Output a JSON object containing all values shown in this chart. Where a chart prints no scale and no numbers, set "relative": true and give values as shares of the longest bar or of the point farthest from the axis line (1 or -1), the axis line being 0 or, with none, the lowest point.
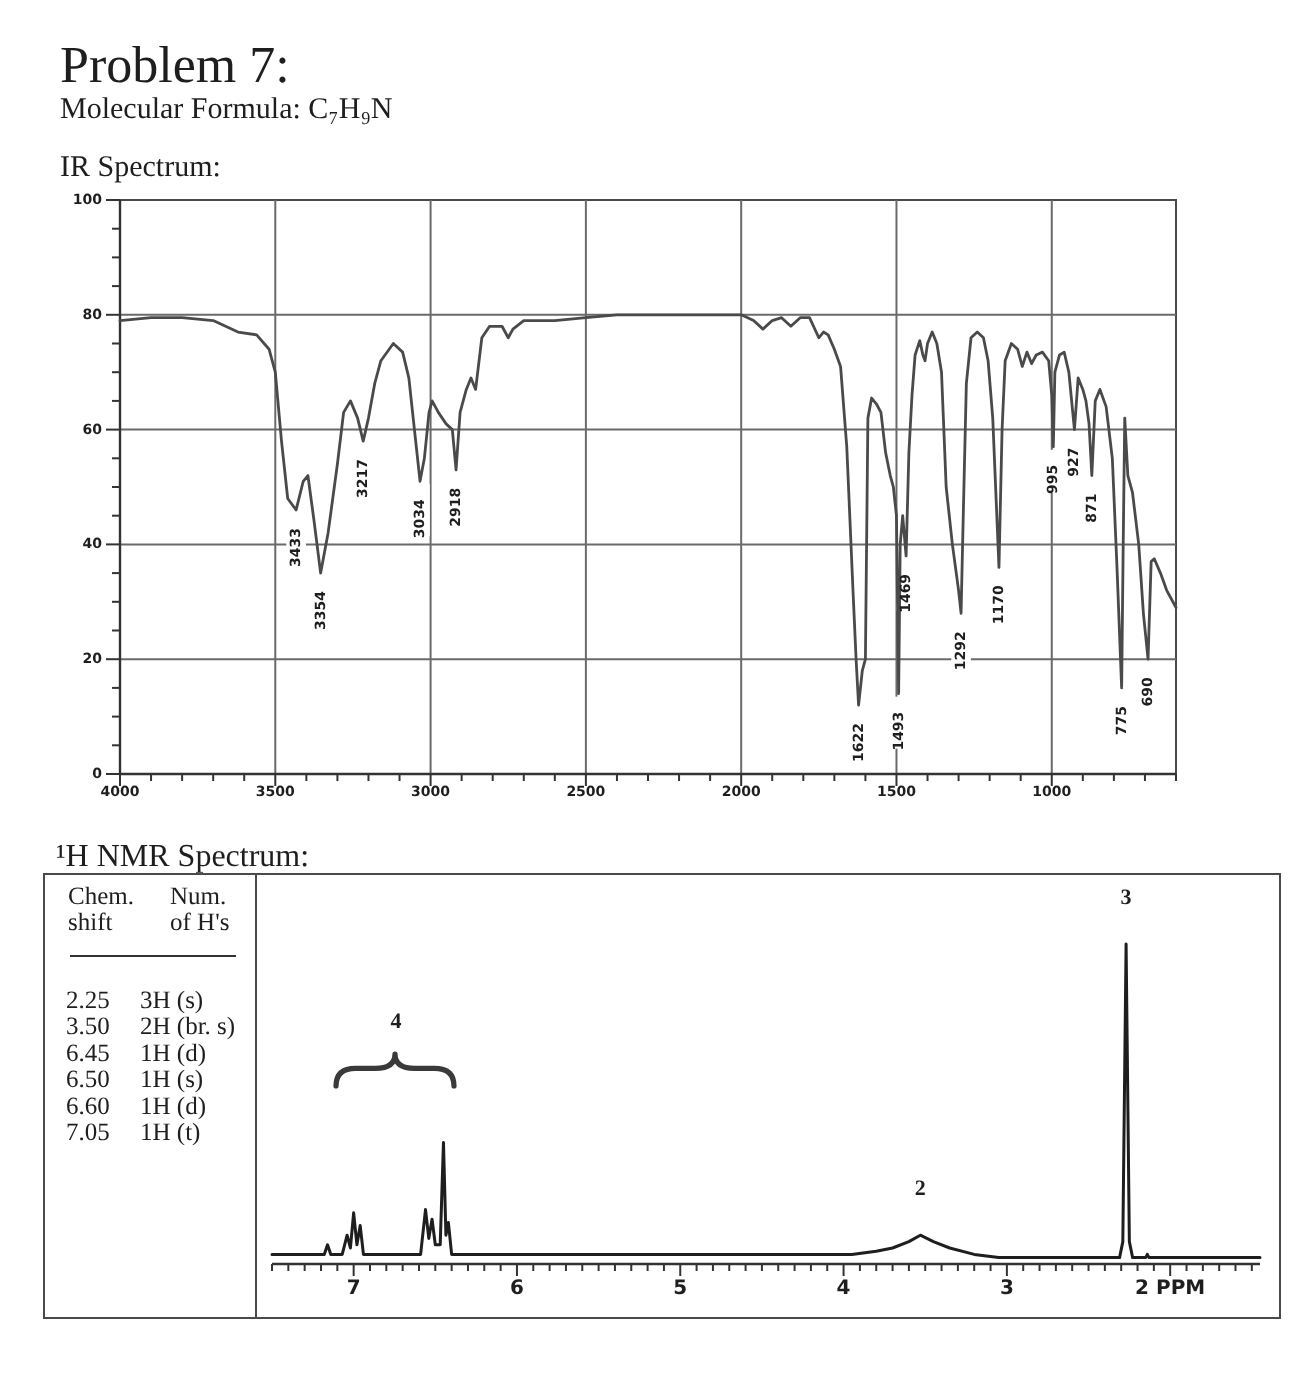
{
  "chart_data": [
    {
      "type": "other",
      "title": "Problem 7:",
      "subtitle": "Molecular Formula: C₇H₉N"
    },
    {
      "type": "line",
      "title": "IR Spectrum:",
      "color": "#4a4a4a",
      "x": [
        4000,
        3900,
        3800,
        3700,
        3660,
        3620,
        3560,
        3520,
        3500,
        3480,
        3460,
        3433,
        3410,
        3395,
        3375,
        3354,
        3330,
        3300,
        3280,
        3258,
        3235,
        3217,
        3200,
        3180,
        3160,
        3120,
        3090,
        3070,
        3050,
        3034,
        3020,
        3005,
        2995,
        2975,
        2950,
        2930,
        2918,
        2905,
        2885,
        2870,
        2855,
        2835,
        2810,
        2770,
        2750,
        2735,
        2700,
        2600,
        2500,
        2400,
        2300,
        2200,
        2100,
        2000,
        1960,
        1930,
        1900,
        1870,
        1840,
        1810,
        1780,
        1750,
        1735,
        1720,
        1700,
        1680,
        1660,
        1640,
        1630,
        1622,
        1610,
        1600,
        1592,
        1580,
        1565,
        1550,
        1535,
        1520,
        1510,
        1500,
        1493,
        1488,
        1480,
        1469,
        1460,
        1450,
        1440,
        1425,
        1415,
        1408,
        1400,
        1385,
        1370,
        1355,
        1340,
        1320,
        1300,
        1292,
        1285,
        1275,
        1260,
        1240,
        1220,
        1205,
        1190,
        1170,
        1160,
        1150,
        1130,
        1110,
        1095,
        1080,
        1065,
        1050,
        1030,
        1010,
        1000,
        995,
        990,
        975,
        960,
        945,
        927,
        915,
        900,
        890,
        880,
        871,
        860,
        845,
        825,
        805,
        790,
        775,
        770,
        765,
        755,
        740,
        720,
        705,
        690,
        680,
        670,
        650,
        630,
        600
      ],
      "values": [
        79,
        79.5,
        79.5,
        79,
        78,
        77,
        76.5,
        74,
        70,
        58,
        48,
        46,
        51,
        52,
        44,
        35,
        42,
        54,
        63,
        65,
        62,
        58,
        62,
        68,
        72,
        75,
        73.5,
        69,
        59,
        51,
        55,
        63,
        65,
        63,
        61,
        60,
        53,
        63,
        67,
        69,
        67,
        76,
        78,
        78,
        76,
        77.5,
        79,
        79,
        79.5,
        80,
        80,
        80,
        80,
        80,
        79,
        77.5,
        79,
        79.5,
        78,
        79.5,
        79.5,
        76,
        77,
        76.5,
        74,
        71,
        57,
        32,
        20,
        12,
        18,
        20,
        62,
        65.5,
        64.5,
        63,
        56,
        52,
        50,
        45,
        14,
        40,
        45,
        38,
        56,
        66,
        73,
        75.5,
        73,
        72,
        75,
        77,
        75,
        70,
        50,
        40,
        32,
        28,
        45,
        68,
        76,
        77,
        76,
        72,
        62,
        36,
        60,
        72,
        75,
        74,
        71,
        73.5,
        71.5,
        73,
        73.5,
        72,
        66,
        57,
        70,
        73,
        73.5,
        70,
        60,
        69,
        67,
        65,
        61,
        52,
        65,
        67,
        64,
        55,
        36,
        15,
        40,
        62,
        52,
        49,
        40,
        28,
        20,
        37,
        37.5,
        35,
        32,
        29
      ],
      "xlim": [
        4000,
        600
      ],
      "ylim": [
        0,
        100
      ],
      "xticks": [
        4000,
        {
          "value": 3900,
          "label": null
        },
        {
          "value": 3800,
          "label": null
        },
        {
          "value": 3700,
          "label": null
        },
        {
          "value": 3600,
          "label": null
        },
        3500,
        {
          "value": 3400,
          "label": null
        },
        {
          "value": 3300,
          "label": null
        },
        {
          "value": 3200,
          "label": null
        },
        {
          "value": 3100,
          "label": null
        },
        3000,
        {
          "value": 2900,
          "label": null
        },
        {
          "value": 2800,
          "label": null
        },
        {
          "value": 2700,
          "label": null
        },
        {
          "value": 2600,
          "label": null
        },
        2500,
        {
          "value": 2400,
          "label": null
        },
        {
          "value": 2300,
          "label": null
        },
        {
          "value": 2200,
          "label": null
        },
        {
          "value": 2100,
          "label": null
        },
        2000,
        {
          "value": 1900,
          "label": null
        },
        {
          "value": 1800,
          "label": null
        },
        {
          "value": 1700,
          "label": null
        },
        {
          "value": 1600,
          "label": null
        },
        1500,
        {
          "value": 1400,
          "label": null
        },
        {
          "value": 1300,
          "label": null
        },
        {
          "value": 1200,
          "label": null
        },
        {
          "value": 1100,
          "label": null
        },
        1000,
        {
          "value": 900,
          "label": null
        },
        {
          "value": 800,
          "label": null
        },
        {
          "value": 700,
          "label": null
        },
        {
          "value": 600,
          "label": null
        }
      ],
      "yticks": [
        0,
        {
          "value": 5,
          "label": null
        },
        {
          "value": 10,
          "label": null
        },
        {
          "value": 15,
          "label": null
        },
        20,
        {
          "value": 25,
          "label": null
        },
        {
          "value": 30,
          "label": null
        },
        {
          "value": 35,
          "label": null
        },
        40,
        {
          "value": 45,
          "label": null
        },
        {
          "value": 50,
          "label": null
        },
        {
          "value": 55,
          "label": null
        },
        60,
        {
          "value": 65,
          "label": null
        },
        {
          "value": 70,
          "label": null
        },
        {
          "value": 75,
          "label": null
        },
        80,
        {
          "value": 85,
          "label": null
        },
        {
          "value": 90,
          "label": null
        },
        {
          "value": 95,
          "label": null
        },
        100
      ],
      "grid": true,
      "annotations": [
        {
          "text": "3433",
          "x": 3433,
          "y": 46
        },
        {
          "text": "3354",
          "x": 3354,
          "y": 35
        },
        {
          "text": "3217",
          "x": 3217,
          "y": 58
        },
        {
          "text": "3034",
          "x": 3034,
          "y": 51
        },
        {
          "text": "2918",
          "x": 2918,
          "y": 53
        },
        {
          "text": "1622",
          "x": 1622,
          "y": 12
        },
        {
          "text": "1493",
          "x": 1493,
          "y": 14
        },
        {
          "text": "1469",
          "x": 1469,
          "y": 38
        },
        {
          "text": "1292",
          "x": 1292,
          "y": 28
        },
        {
          "text": "1170",
          "x": 1170,
          "y": 36
        },
        {
          "text": "995",
          "x": 995,
          "y": 57
        },
        {
          "text": "927",
          "x": 927,
          "y": 60
        },
        {
          "text": "871",
          "x": 871,
          "y": 52
        },
        {
          "text": "775",
          "x": 775,
          "y": 15
        },
        {
          "text": "690",
          "x": 690,
          "y": 20
        }
      ]
    },
    {
      "type": "other",
      "title": "¹H NMR Spectrum:",
      "categories": [
        "Chem. shift",
        "Num. of H's"
      ],
      "cell_labels": [
        [
          "2.25",
          "3H (s)"
        ],
        [
          "3.50",
          "2H (br. s)"
        ],
        [
          "6.45",
          "1H (d)"
        ],
        [
          "6.50",
          "1H (s)"
        ],
        [
          "6.60",
          "1H (d)"
        ],
        [
          "7.05",
          "1H (t)"
        ]
      ]
    },
    {
      "type": "line",
      "relative": true,
      "color": "#1e1e1e",
      "x": [
        7.5,
        7.18,
        7.16,
        7.14,
        7.07,
        7.04,
        7.02,
        7.0,
        6.98,
        6.96,
        6.94,
        6.59,
        6.56,
        6.54,
        6.52,
        6.5,
        6.47,
        6.45,
        6.435,
        6.42,
        6.4,
        3.95,
        3.8,
        3.7,
        3.6,
        3.53,
        3.45,
        3.35,
        3.2,
        3.05,
        2.31,
        2.29,
        2.27,
        2.25,
        2.23,
        2.15,
        2.14,
        2.13,
        1.45
      ],
      "values": [
        0.03,
        0.03,
        0.06,
        0.03,
        0.03,
        0.09,
        0.05,
        0.16,
        0.06,
        0.12,
        0.03,
        0.03,
        0.17,
        0.08,
        0.14,
        0.06,
        0.06,
        0.38,
        0.09,
        0.13,
        0.03,
        0.03,
        0.04,
        0.05,
        0.07,
        0.09,
        0.07,
        0.05,
        0.03,
        0.02,
        0.02,
        0.07,
        1,
        0.07,
        0.02,
        0.02,
        0.03,
        0.02,
        0.02
      ],
      "xlim": [
        7.5,
        1.45
      ],
      "xticks": [
        {
          "value": 7.5,
          "label": null
        },
        {
          "value": 7.4,
          "label": null
        },
        {
          "value": 7.3,
          "label": null
        },
        {
          "value": 7.2,
          "label": null
        },
        {
          "value": 7.1,
          "label": null
        },
        7,
        {
          "value": 6.9,
          "label": null
        },
        {
          "value": 6.8,
          "label": null
        },
        {
          "value": 6.7,
          "label": null
        },
        {
          "value": 6.6,
          "label": null
        },
        {
          "value": 6.5,
          "label": null
        },
        {
          "value": 6.4,
          "label": null
        },
        {
          "value": 6.3,
          "label": null
        },
        {
          "value": 6.2,
          "label": null
        },
        {
          "value": 6.1,
          "label": null
        },
        6,
        {
          "value": 5.9,
          "label": null
        },
        {
          "value": 5.8,
          "label": null
        },
        {
          "value": 5.7,
          "label": null
        },
        {
          "value": 5.6,
          "label": null
        },
        {
          "value": 5.5,
          "label": null
        },
        {
          "value": 5.4,
          "label": null
        },
        {
          "value": 5.3,
          "label": null
        },
        {
          "value": 5.2,
          "label": null
        },
        {
          "value": 5.1,
          "label": null
        },
        5,
        {
          "value": 4.9,
          "label": null
        },
        {
          "value": 4.8,
          "label": null
        },
        {
          "value": 4.7,
          "label": null
        },
        {
          "value": 4.6,
          "label": null
        },
        {
          "value": 4.5,
          "label": null
        },
        {
          "value": 4.4,
          "label": null
        },
        {
          "value": 4.3,
          "label": null
        },
        {
          "value": 4.2,
          "label": null
        },
        {
          "value": 4.1,
          "label": null
        },
        4,
        {
          "value": 3.9,
          "label": null
        },
        {
          "value": 3.8,
          "label": null
        },
        {
          "value": 3.7,
          "label": null
        },
        {
          "value": 3.6,
          "label": null
        },
        {
          "value": 3.5,
          "label": null
        },
        {
          "value": 3.4,
          "label": null
        },
        {
          "value": 3.3,
          "label": null
        },
        {
          "value": 3.2,
          "label": null
        },
        {
          "value": 3.1,
          "label": null
        },
        3,
        {
          "value": 2.9,
          "label": null
        },
        {
          "value": 2.8,
          "label": null
        },
        {
          "value": 2.7,
          "label": null
        },
        {
          "value": 2.6,
          "label": null
        },
        {
          "value": 2.5,
          "label": null
        },
        {
          "value": 2.4,
          "label": null
        },
        {
          "value": 2.3,
          "label": null
        },
        {
          "value": 2.2,
          "label": null
        },
        {
          "value": 2.1,
          "label": null
        },
        {
          "value": 2,
          "label": "2 PPM"
        },
        {
          "value": 1.9,
          "label": null
        },
        {
          "value": 1.8,
          "label": null
        },
        {
          "value": 1.7,
          "label": null
        },
        {
          "value": 1.6,
          "label": null
        },
        {
          "value": 1.5,
          "label": null
        }
      ],
      "annotations": [
        "4",
        {
          "text": "2",
          "x": 3.53,
          "y": 0.09
        },
        {
          "text": "3",
          "x": 2.27,
          "y": 1
        }
      ]
    }
  ]
}
